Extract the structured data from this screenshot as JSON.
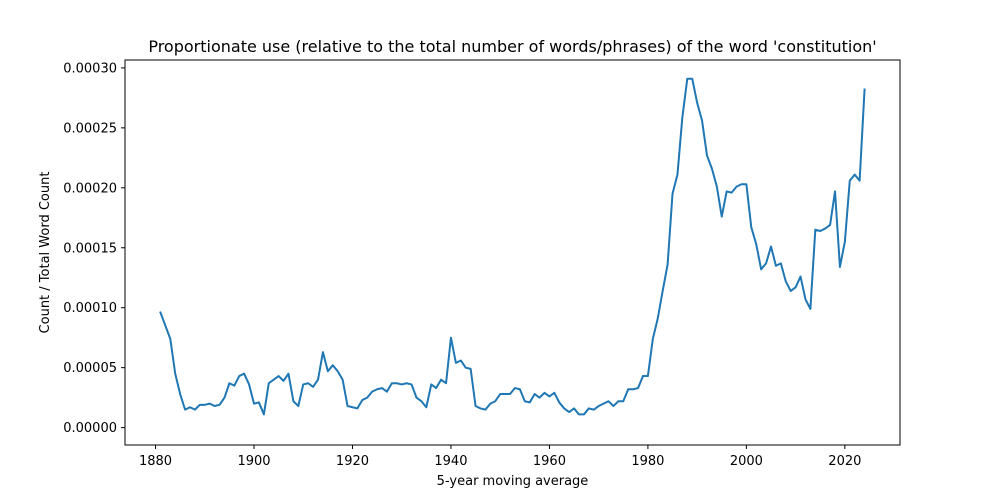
{
  "chart_data": {
    "type": "line",
    "title": "Proportionate use (relative to the total number of words/phrases) of the word 'constitution'",
    "xlabel": "5-year moving average",
    "ylabel": "Count / Total Word Count",
    "xlim": [
      1873.8,
      2031.2
    ],
    "ylim": [
      -1.45e-05,
      0.0003066
    ],
    "xticks": [
      1880,
      1900,
      1920,
      1940,
      1960,
      1980,
      2000,
      2020
    ],
    "xtick_labels": [
      "1880",
      "1900",
      "1920",
      "1940",
      "1960",
      "1980",
      "2000",
      "2020"
    ],
    "yticks": [
      0,
      5e-05,
      0.0001,
      0.00015,
      0.0002,
      0.00025,
      0.0003
    ],
    "ytick_labels": [
      "0.00000",
      "0.00005",
      "0.00010",
      "0.00015",
      "0.00020",
      "0.00025",
      "0.00030"
    ],
    "grid": false,
    "legend": "none",
    "series": [
      {
        "color": "#1f77b4",
        "x": [
          1881,
          1882,
          1883,
          1884,
          1885,
          1886,
          1887,
          1888,
          1889,
          1890,
          1891,
          1892,
          1893,
          1894,
          1895,
          1896,
          1897,
          1898,
          1899,
          1900,
          1901,
          1902,
          1903,
          1904,
          1905,
          1906,
          1907,
          1908,
          1909,
          1910,
          1911,
          1912,
          1913,
          1914,
          1915,
          1916,
          1917,
          1918,
          1919,
          1920,
          1921,
          1922,
          1923,
          1924,
          1925,
          1926,
          1927,
          1928,
          1929,
          1930,
          1931,
          1932,
          1933,
          1934,
          1935,
          1936,
          1937,
          1938,
          1939,
          1940,
          1941,
          1942,
          1943,
          1944,
          1945,
          1946,
          1947,
          1948,
          1949,
          1950,
          1951,
          1952,
          1953,
          1954,
          1955,
          1956,
          1957,
          1958,
          1959,
          1960,
          1961,
          1962,
          1963,
          1964,
          1965,
          1966,
          1967,
          1968,
          1969,
          1970,
          1971,
          1972,
          1973,
          1974,
          1975,
          1976,
          1977,
          1978,
          1979,
          1980,
          1981,
          1982,
          1983,
          1984,
          1985,
          1986,
          1987,
          1988,
          1989,
          1990,
          1991,
          1992,
          1993,
          1994,
          1995,
          1996,
          1997,
          1998,
          1999,
          2000,
          2001,
          2002,
          2003,
          2004,
          2005,
          2006,
          2007,
          2008,
          2009,
          2010,
          2011,
          2012,
          2013,
          2014,
          2015,
          2016,
          2017,
          2018,
          2019,
          2020,
          2021,
          2022,
          2023,
          2024
        ],
        "values": [
          9.6e-05,
          8.5e-05,
          7.4e-05,
          4.5e-05,
          2.8e-05,
          1.5e-05,
          1.7e-05,
          1.5e-05,
          1.9e-05,
          1.9e-05,
          2e-05,
          1.8e-05,
          1.9e-05,
          2.5e-05,
          3.7e-05,
          3.5e-05,
          4.3e-05,
          4.5e-05,
          3.6e-05,
          2e-05,
          2.1e-05,
          1.1e-05,
          3.7e-05,
          4e-05,
          4.3e-05,
          3.9e-05,
          4.5e-05,
          2.2e-05,
          1.8e-05,
          3.6e-05,
          3.7e-05,
          3.4e-05,
          4e-05,
          6.3e-05,
          4.7e-05,
          5.2e-05,
          4.7e-05,
          4e-05,
          1.8e-05,
          1.7e-05,
          1.6e-05,
          2.3e-05,
          2.5e-05,
          3e-05,
          3.2e-05,
          3.3e-05,
          3e-05,
          3.7e-05,
          3.7e-05,
          3.6e-05,
          3.7e-05,
          3.6e-05,
          2.5e-05,
          2.2e-05,
          1.7e-05,
          3.6e-05,
          3.3e-05,
          4e-05,
          3.7e-05,
          7.5e-05,
          5.4e-05,
          5.6e-05,
          5e-05,
          4.9e-05,
          1.8e-05,
          1.6e-05,
          1.5e-05,
          2e-05,
          2.2e-05,
          2.8e-05,
          2.8e-05,
          2.8e-05,
          3.3e-05,
          3.2e-05,
          2.2e-05,
          2.1e-05,
          2.8e-05,
          2.5e-05,
          2.9e-05,
          2.6e-05,
          2.9e-05,
          2.1e-05,
          1.6e-05,
          1.3e-05,
          1.6e-05,
          1.1e-05,
          1.1e-05,
          1.6e-05,
          1.5e-05,
          1.8e-05,
          2e-05,
          2.2e-05,
          1.8e-05,
          2.2e-05,
          2.2e-05,
          3.2e-05,
          3.2e-05,
          3.3e-05,
          4.3e-05,
          4.3e-05,
          7.4e-05,
          9.1e-05,
          0.000114,
          0.000136,
          0.000195,
          0.000211,
          0.000259,
          0.000291,
          0.000291,
          0.000271,
          0.000256,
          0.000227,
          0.000216,
          0.000201,
          0.000176,
          0.000197,
          0.000196,
          0.000201,
          0.000203,
          0.000203,
          0.000167,
          0.000153,
          0.000132,
          0.000137,
          0.000151,
          0.000135,
          0.000137,
          0.000122,
          0.000114,
          0.000117,
          0.000126,
          0.000107,
          9.9e-05,
          0.000165,
          0.000164,
          0.000166,
          0.000169,
          0.000197,
          0.000134,
          0.000155,
          0.000206,
          0.000211,
          0.000206,
          0.000282
        ]
      }
    ]
  }
}
